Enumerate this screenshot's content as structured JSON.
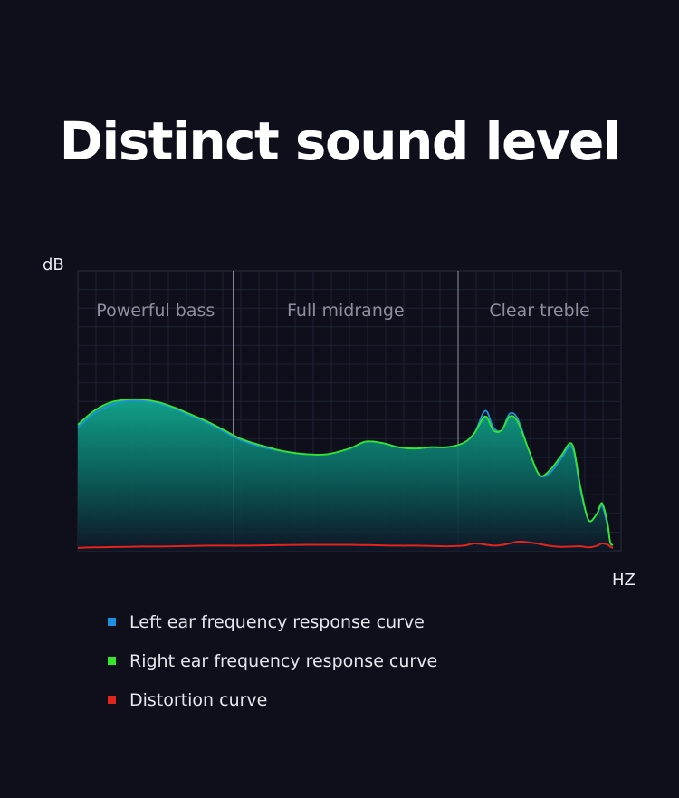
{
  "title": "Distinct sound level",
  "chart_data": {
    "type": "area",
    "ylabel": "dB",
    "xlabel": "HZ",
    "grid": true,
    "regions": [
      {
        "label": "Powerful bass",
        "start": 0,
        "end": 0.286
      },
      {
        "label": "Full midrange",
        "start": 0.286,
        "end": 0.7
      },
      {
        "label": "Clear treble",
        "start": 0.7,
        "end": 1.0
      }
    ],
    "x": [
      0,
      0.03,
      0.06,
      0.09,
      0.12,
      0.15,
      0.18,
      0.21,
      0.24,
      0.27,
      0.3,
      0.34,
      0.38,
      0.42,
      0.46,
      0.5,
      0.53,
      0.56,
      0.59,
      0.62,
      0.65,
      0.68,
      0.71,
      0.73,
      0.75,
      0.765,
      0.78,
      0.795,
      0.81,
      0.83,
      0.85,
      0.87,
      0.89,
      0.91,
      0.925,
      0.94,
      0.955,
      0.965,
      0.975,
      0.98,
      0.985
    ],
    "series": [
      {
        "name": "Left ear frequency response curve",
        "color": "#1e90e0",
        "values": [
          0.44,
          0.49,
          0.52,
          0.535,
          0.535,
          0.525,
          0.505,
          0.48,
          0.455,
          0.425,
          0.395,
          0.37,
          0.355,
          0.345,
          0.345,
          0.365,
          0.39,
          0.385,
          0.37,
          0.365,
          0.37,
          0.37,
          0.385,
          0.42,
          0.5,
          0.44,
          0.43,
          0.49,
          0.47,
          0.36,
          0.27,
          0.28,
          0.33,
          0.37,
          0.22,
          0.11,
          0.13,
          0.16,
          0.09,
          0.03,
          0.02
        ]
      },
      {
        "name": "Right ear frequency response curve",
        "color": "#35e626",
        "values": [
          0.45,
          0.5,
          0.53,
          0.54,
          0.54,
          0.53,
          0.51,
          0.485,
          0.46,
          0.43,
          0.4,
          0.375,
          0.355,
          0.345,
          0.345,
          0.365,
          0.39,
          0.385,
          0.37,
          0.365,
          0.37,
          0.37,
          0.385,
          0.42,
          0.48,
          0.43,
          0.43,
          0.48,
          0.46,
          0.36,
          0.27,
          0.29,
          0.34,
          0.38,
          0.23,
          0.11,
          0.13,
          0.17,
          0.1,
          0.03,
          0.02
        ]
      },
      {
        "name": "Distortion curve",
        "color": "#e1241c",
        "values": [
          0.01,
          0.012,
          0.013,
          0.014,
          0.015,
          0.015,
          0.016,
          0.017,
          0.018,
          0.018,
          0.018,
          0.019,
          0.02,
          0.021,
          0.021,
          0.021,
          0.02,
          0.019,
          0.018,
          0.018,
          0.017,
          0.016,
          0.018,
          0.026,
          0.022,
          0.018,
          0.02,
          0.026,
          0.032,
          0.03,
          0.024,
          0.017,
          0.014,
          0.015,
          0.016,
          0.012,
          0.017,
          0.026,
          0.022,
          0.015,
          0.01
        ]
      }
    ]
  },
  "legend": {
    "items": [
      {
        "label": "Left ear frequency response curve",
        "color": "#1e90e0"
      },
      {
        "label": "Right ear frequency response curve",
        "color": "#35e626"
      },
      {
        "label": "Distortion curve",
        "color": "#e1241c"
      }
    ]
  }
}
